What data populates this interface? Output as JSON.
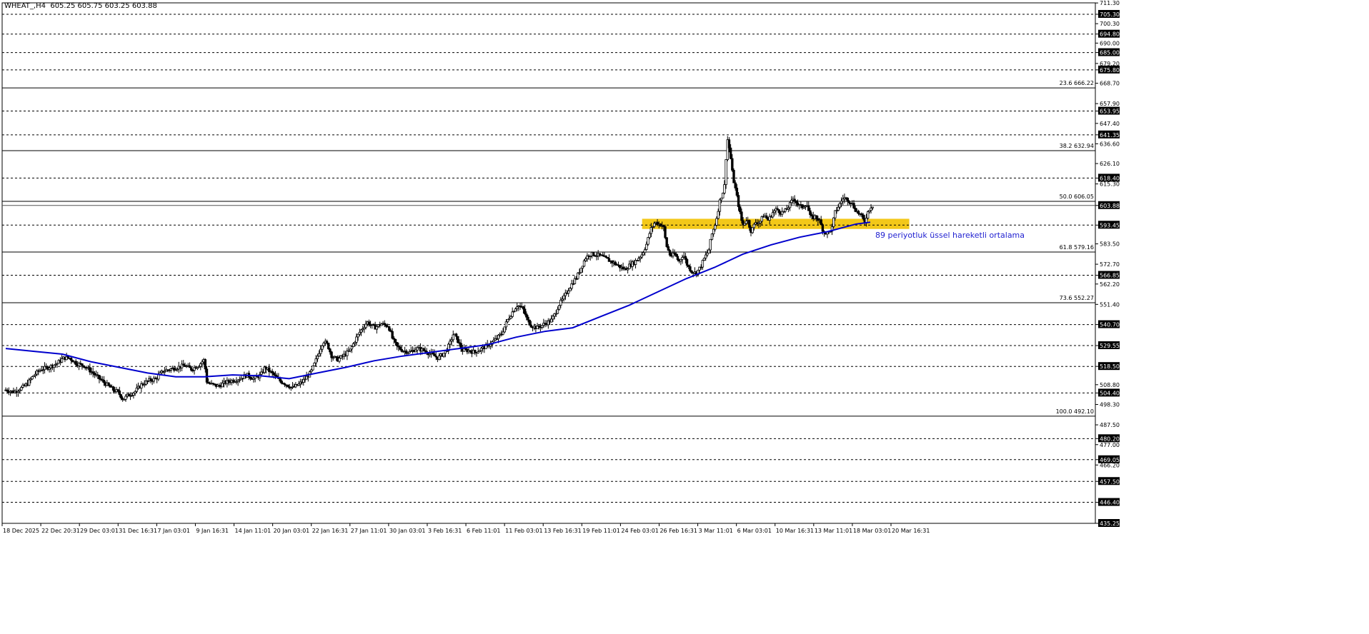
{
  "header": {
    "symbol": "WHEAT_,H4",
    "ohlc": "605.25 605.75 603.25 603.88"
  },
  "annotation": "89 periyotluk üssel hareketli ortalama",
  "colors": {
    "candle": "#000000",
    "ema": "#0000cd",
    "zone": "#f2c200",
    "grid": "#000000",
    "text": "#000000"
  },
  "chart_data": {
    "type": "candlestick",
    "symbol": "WHEAT_",
    "timeframe": "H4",
    "ylim": [
      435.25,
      711.35
    ],
    "y_ticks": [
      "711.30",
      "705.30",
      "700.30",
      "694.80",
      "690.00",
      "685.00",
      "679.20",
      "675.80",
      "668.70",
      "657.90",
      "653.95",
      "647.40",
      "641.35",
      "636.60",
      "626.10",
      "618.40",
      "615.30",
      "603.88",
      "593.45",
      "583.50",
      "572.70",
      "566.85",
      "562.20",
      "551.40",
      "540.70",
      "529.55",
      "518.50",
      "508.80",
      "504.40",
      "498.30",
      "487.50",
      "480.20",
      "477.00",
      "469.05",
      "466.20",
      "457.50",
      "446.40",
      "435.25"
    ],
    "highlighted_ticks": [
      "705.30",
      "694.80",
      "685.00",
      "675.80",
      "653.95",
      "641.35",
      "618.40",
      "603.88",
      "593.45",
      "566.85",
      "540.70",
      "529.55",
      "518.50",
      "504.40",
      "480.20",
      "469.05",
      "457.50",
      "446.40",
      "435.25"
    ],
    "x_ticks": [
      "18 Dec 2025",
      "22 Dec 20:31",
      "29 Dec 03:01",
      "31 Dec 16:31",
      "7 Jan 03:01",
      "9 Jan 16:31",
      "14 Jan 11:01",
      "20 Jan 03:01",
      "22 Jan 16:31",
      "27 Jan 11:01",
      "30 Jan 03:01",
      "3 Feb 16:31",
      "6 Feb 11:01",
      "11 Feb 03:01",
      "13 Feb 16:31",
      "19 Feb 11:01",
      "24 Feb 03:01",
      "26 Feb 16:31",
      "3 Mar 11:01",
      "6 Mar 03:01",
      "10 Mar 16:31",
      "13 Mar 11:01",
      "18 Mar 03:01",
      "20 Mar 16:31"
    ],
    "horizontal_levels": [
      705.3,
      694.8,
      685.0,
      675.8,
      653.95,
      641.35,
      618.4,
      593.45,
      566.85,
      540.7,
      529.55,
      518.5,
      504.4,
      480.2,
      469.05,
      457.5,
      446.4,
      435.25
    ],
    "fibonacci": [
      {
        "label": "23.6 666.22",
        "value": 666.22
      },
      {
        "label": "38.2 632.94",
        "value": 632.94
      },
      {
        "label": "50.0 606.05",
        "value": 606.05
      },
      {
        "label": "61.8 579.16",
        "value": 579.16
      },
      {
        "label": "73.6 552.27",
        "value": 552.27
      },
      {
        "label": "100.0 492.10",
        "value": 492.1
      }
    ],
    "current_price": 603.88,
    "support_zone": [
      591.4,
      596.8
    ],
    "close_path": [
      [
        0,
        506
      ],
      [
        12,
        505
      ],
      [
        22,
        507
      ],
      [
        30,
        509
      ],
      [
        40,
        514
      ],
      [
        50,
        517
      ],
      [
        60,
        518
      ],
      [
        72,
        520
      ],
      [
        82,
        523
      ],
      [
        90,
        523
      ],
      [
        100,
        520
      ],
      [
        110,
        519
      ],
      [
        120,
        516
      ],
      [
        132,
        512
      ],
      [
        142,
        509
      ],
      [
        152,
        506
      ],
      [
        158,
        505
      ],
      [
        166,
        501
      ],
      [
        172,
        503
      ],
      [
        182,
        505
      ],
      [
        192,
        509
      ],
      [
        202,
        511
      ],
      [
        212,
        512
      ],
      [
        222,
        516
      ],
      [
        232,
        517
      ],
      [
        242,
        518
      ],
      [
        252,
        519
      ],
      [
        262,
        517
      ],
      [
        272,
        519
      ],
      [
        280,
        522
      ],
      [
        284,
        510
      ],
      [
        290,
        509
      ],
      [
        300,
        508
      ],
      [
        310,
        510
      ],
      [
        320,
        511
      ],
      [
        330,
        512
      ],
      [
        340,
        514
      ],
      [
        350,
        512
      ],
      [
        360,
        514
      ],
      [
        366,
        518
      ],
      [
        372,
        516
      ],
      [
        378,
        514
      ],
      [
        386,
        511
      ],
      [
        396,
        509
      ],
      [
        404,
        507
      ],
      [
        414,
        509
      ],
      [
        420,
        511
      ],
      [
        430,
        515
      ],
      [
        436,
        520
      ],
      [
        442,
        526
      ],
      [
        448,
        532
      ],
      [
        454,
        530
      ],
      [
        460,
        524
      ],
      [
        468,
        522
      ],
      [
        476,
        524
      ],
      [
        486,
        527
      ],
      [
        494,
        533
      ],
      [
        500,
        537
      ],
      [
        510,
        542
      ],
      [
        520,
        539
      ],
      [
        530,
        541
      ],
      [
        540,
        540
      ],
      [
        546,
        533
      ],
      [
        552,
        529
      ],
      [
        560,
        527
      ],
      [
        570,
        526
      ],
      [
        580,
        528
      ],
      [
        590,
        527
      ],
      [
        600,
        525
      ],
      [
        610,
        523
      ],
      [
        620,
        526
      ],
      [
        626,
        530
      ],
      [
        632,
        536
      ],
      [
        638,
        532
      ],
      [
        644,
        527
      ],
      [
        652,
        527
      ],
      [
        662,
        526
      ],
      [
        672,
        528
      ],
      [
        682,
        530
      ],
      [
        692,
        533
      ],
      [
        700,
        536
      ],
      [
        708,
        543
      ],
      [
        716,
        548
      ],
      [
        722,
        551
      ],
      [
        730,
        549
      ],
      [
        736,
        543
      ],
      [
        742,
        540
      ],
      [
        750,
        539
      ],
      [
        760,
        541
      ],
      [
        770,
        543
      ],
      [
        776,
        547
      ],
      [
        780,
        551
      ],
      [
        786,
        554
      ],
      [
        792,
        558
      ],
      [
        800,
        563
      ],
      [
        806,
        566
      ],
      [
        812,
        571
      ],
      [
        818,
        576
      ],
      [
        824,
        578
      ],
      [
        830,
        578
      ],
      [
        840,
        577
      ],
      [
        850,
        575
      ],
      [
        860,
        573
      ],
      [
        868,
        571
      ],
      [
        874,
        570
      ],
      [
        880,
        572
      ],
      [
        888,
        574
      ],
      [
        898,
        578
      ],
      [
        904,
        583
      ],
      [
        910,
        591
      ],
      [
        916,
        595
      ],
      [
        922,
        594
      ],
      [
        928,
        593
      ],
      [
        932,
        583
      ],
      [
        938,
        577
      ],
      [
        944,
        578
      ],
      [
        950,
        574
      ],
      [
        956,
        578
      ],
      [
        962,
        572
      ],
      [
        968,
        569
      ],
      [
        974,
        568
      ],
      [
        980,
        571
      ],
      [
        986,
        576
      ],
      [
        992,
        580
      ],
      [
        996,
        588
      ],
      [
        1002,
        595
      ],
      [
        1008,
        607
      ],
      [
        1014,
        613
      ],
      [
        1018,
        640
      ],
      [
        1022,
        632
      ],
      [
        1026,
        619
      ],
      [
        1030,
        612
      ],
      [
        1036,
        600
      ],
      [
        1040,
        593
      ],
      [
        1046,
        597
      ],
      [
        1052,
        590
      ],
      [
        1058,
        595
      ],
      [
        1064,
        595
      ],
      [
        1070,
        599
      ],
      [
        1076,
        596
      ],
      [
        1082,
        600
      ],
      [
        1088,
        602
      ],
      [
        1094,
        600
      ],
      [
        1100,
        601
      ],
      [
        1106,
        604
      ],
      [
        1112,
        608
      ],
      [
        1118,
        604
      ],
      [
        1124,
        603
      ],
      [
        1130,
        605
      ],
      [
        1136,
        597
      ],
      [
        1142,
        598
      ],
      [
        1148,
        596
      ],
      [
        1154,
        590
      ],
      [
        1160,
        589
      ],
      [
        1166,
        592
      ],
      [
        1170,
        600
      ],
      [
        1176,
        604
      ],
      [
        1182,
        608
      ],
      [
        1188,
        607
      ],
      [
        1194,
        605
      ],
      [
        1200,
        601
      ],
      [
        1206,
        599
      ],
      [
        1212,
        595
      ],
      [
        1216,
        600
      ],
      [
        1220,
        603
      ],
      [
        1224,
        604
      ]
    ],
    "ema89_path": [
      [
        0,
        528
      ],
      [
        40,
        526.5
      ],
      [
        80,
        525
      ],
      [
        120,
        521
      ],
      [
        160,
        518
      ],
      [
        200,
        515
      ],
      [
        240,
        513
      ],
      [
        280,
        513
      ],
      [
        320,
        514
      ],
      [
        360,
        513.5
      ],
      [
        400,
        512
      ],
      [
        440,
        515
      ],
      [
        480,
        518
      ],
      [
        520,
        521.5
      ],
      [
        560,
        524
      ],
      [
        600,
        526
      ],
      [
        640,
        528
      ],
      [
        680,
        530
      ],
      [
        720,
        534
      ],
      [
        760,
        537
      ],
      [
        800,
        539
      ],
      [
        840,
        545
      ],
      [
        880,
        551
      ],
      [
        920,
        558
      ],
      [
        960,
        565
      ],
      [
        1000,
        571
      ],
      [
        1040,
        578
      ],
      [
        1080,
        583
      ],
      [
        1120,
        587
      ],
      [
        1160,
        590
      ],
      [
        1200,
        594
      ],
      [
        1220,
        595
      ]
    ]
  }
}
